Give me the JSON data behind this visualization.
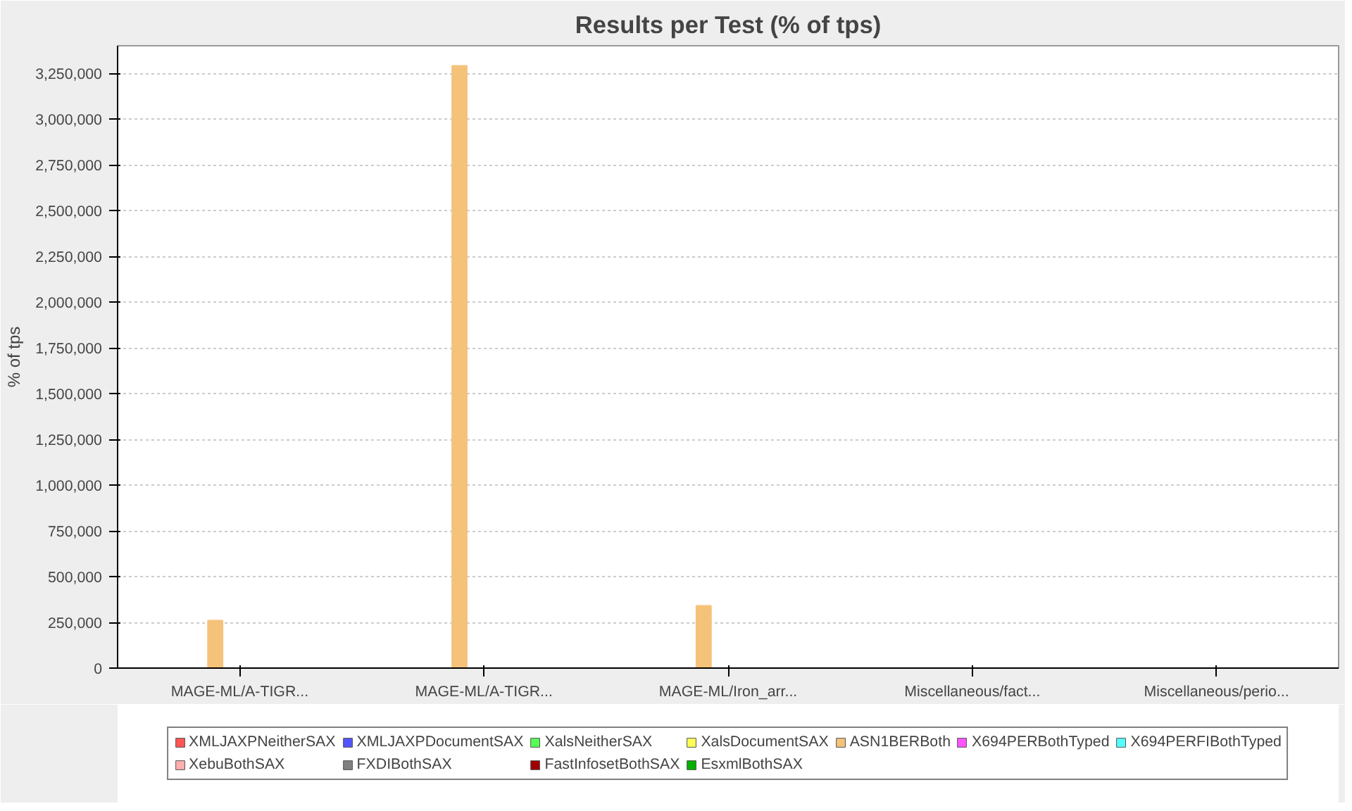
{
  "chart_data": {
    "type": "bar",
    "title": "Results per Test (% of tps)",
    "ylabel": "% of tps",
    "categories": [
      "MAGE-ML/A-TIGR...",
      "MAGE-ML/A-TIGR...",
      "MAGE-ML/Iron_arr...",
      "Miscellaneous/fact...",
      "Miscellaneous/perio..."
    ],
    "series": [
      {
        "name": "XMLJAXPNeitherSAX",
        "color": "#ff5555",
        "values": [
          0,
          0,
          0,
          0,
          0
        ]
      },
      {
        "name": "XMLJAXPDocumentSAX",
        "color": "#5555ff",
        "values": [
          0,
          0,
          0,
          0,
          0
        ]
      },
      {
        "name": "XalsNeitherSAX",
        "color": "#55ff55",
        "values": [
          0,
          0,
          0,
          0,
          0
        ]
      },
      {
        "name": "XalsDocumentSAX",
        "color": "#ffff55",
        "values": [
          0,
          0,
          0,
          0,
          0
        ]
      },
      {
        "name": "ASN1BERBoth",
        "color": "#f5c27a",
        "values": [
          260000,
          3290000,
          340000,
          0,
          0
        ]
      },
      {
        "name": "X694PERBothTyped",
        "color": "#ff55ff",
        "values": [
          0,
          0,
          0,
          0,
          0
        ]
      },
      {
        "name": "X694PERFIBothTyped",
        "color": "#55ffff",
        "values": [
          0,
          0,
          0,
          0,
          0
        ]
      },
      {
        "name": "XebuBothSAX",
        "color": "#ffafaf",
        "values": [
          0,
          0,
          0,
          0,
          0
        ]
      },
      {
        "name": "FXDIBothSAX",
        "color": "#808080",
        "values": [
          0,
          0,
          0,
          0,
          0
        ]
      },
      {
        "name": "FastInfosetBothSAX",
        "color": "#a00000",
        "values": [
          0,
          0,
          0,
          0,
          0
        ]
      },
      {
        "color": "#0000a0",
        "values": [
          0,
          0,
          0,
          0,
          0
        ]
      },
      {
        "name": "EsxmlBothSAX",
        "color": "#00b000",
        "values": [
          0,
          0,
          0,
          0,
          0
        ]
      }
    ],
    "ylim": [
      0,
      3400000
    ],
    "yticks": [
      {
        "value": 0,
        "label": "0"
      },
      {
        "value": 250000,
        "label": "250,000"
      },
      {
        "value": 500000,
        "label": "500,000"
      },
      {
        "value": 750000,
        "label": "750,000"
      },
      {
        "value": 1000000,
        "label": "1,000,000"
      },
      {
        "value": 1250000,
        "label": "1,250,000"
      },
      {
        "value": 1500000,
        "label": "1,500,000"
      },
      {
        "value": 1750000,
        "label": "1,750,000"
      },
      {
        "value": 2000000,
        "label": "2,000,000"
      },
      {
        "value": 2250000,
        "label": "2,250,000"
      },
      {
        "value": 2500000,
        "label": "2,500,000"
      },
      {
        "value": 2750000,
        "label": "2,750,000"
      },
      {
        "value": 3000000,
        "label": "3,000,000"
      },
      {
        "value": 3250000,
        "label": "3,250,000"
      }
    ],
    "grid": "y",
    "legend": "bottom"
  }
}
